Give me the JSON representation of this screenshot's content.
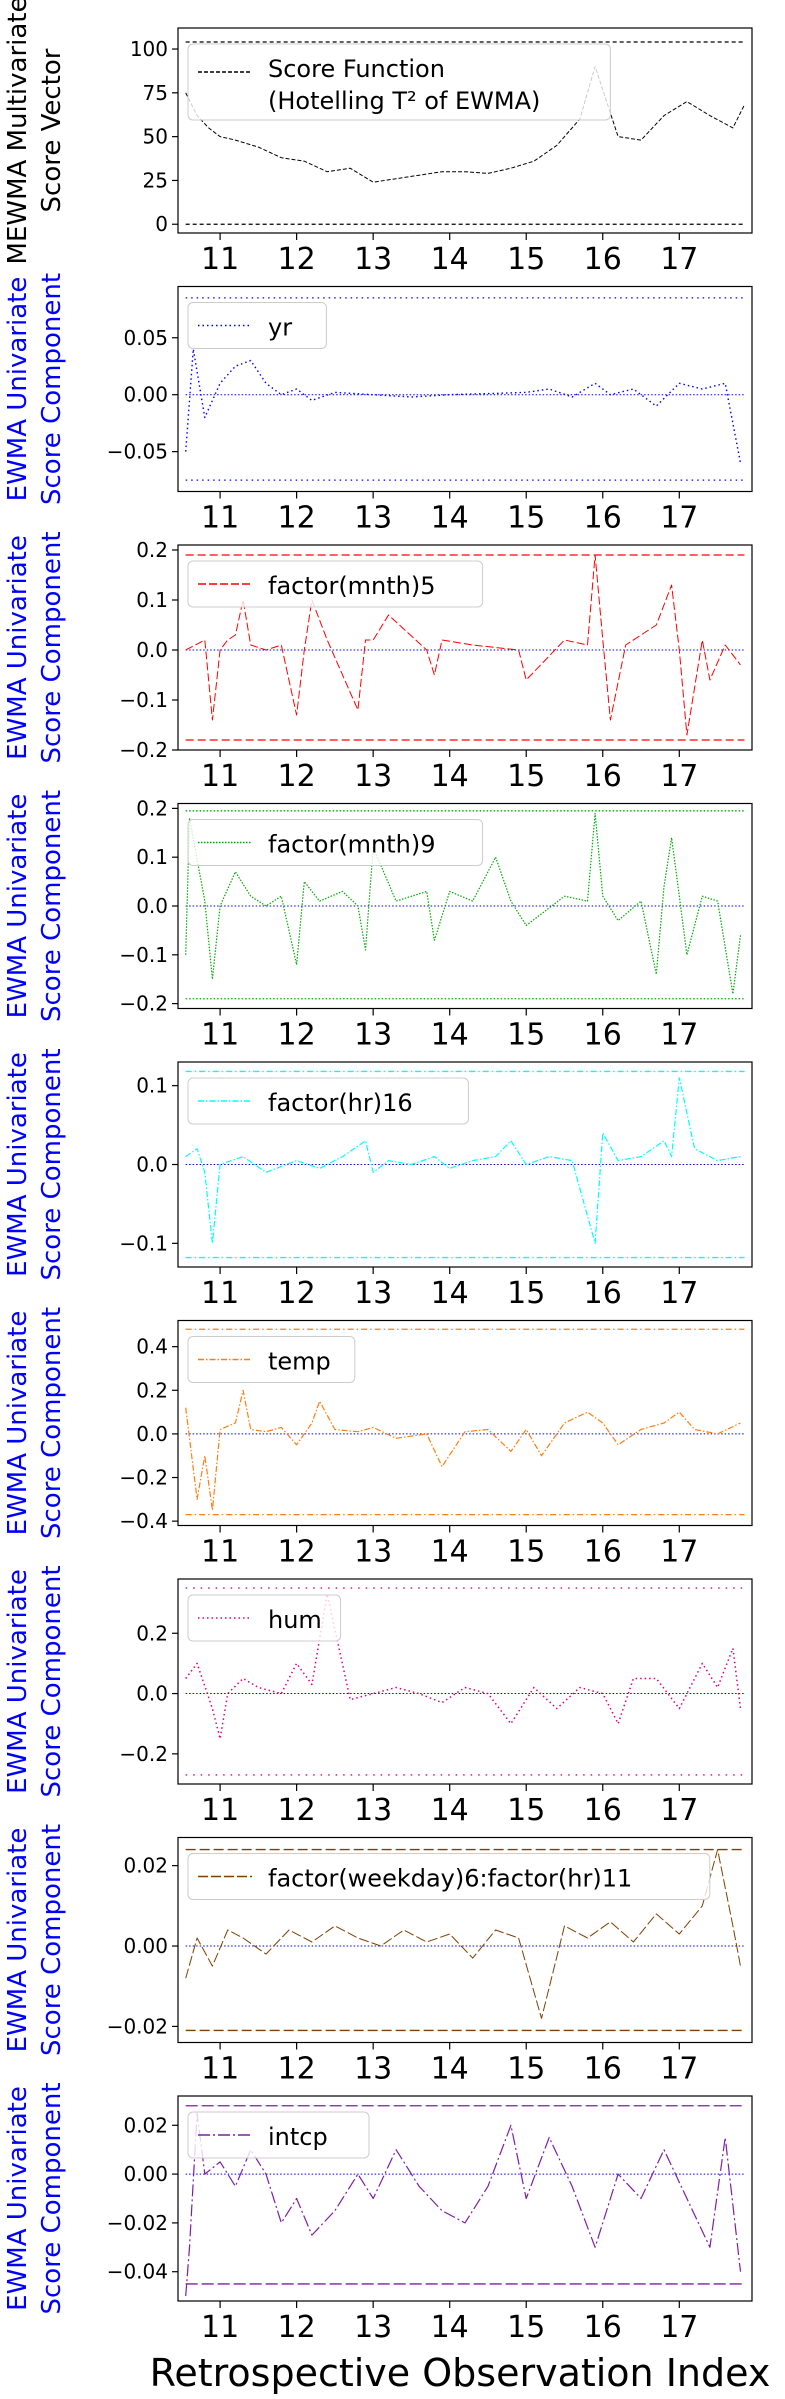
{
  "figure": {
    "xlabel": "Retrospective Observation Index"
  },
  "chart_data": [
    {
      "type": "line",
      "ylabel_lines": [
        "MEWMA Multivariate",
        "Score Vector"
      ],
      "ylabel_color": "#000000",
      "legend": [
        "Score Function",
        "(Hotelling T² of EWMA)"
      ],
      "series": [
        {
          "name": "Score Function (Hotelling T² of EWMA)",
          "color": "#000000",
          "dash": "4,2",
          "width": 1,
          "x": [
            10.55,
            10.7,
            10.85,
            11,
            11.2,
            11.5,
            11.8,
            12.1,
            12.4,
            12.7,
            13,
            13.3,
            13.6,
            13.9,
            14.2,
            14.5,
            14.8,
            15.1,
            15.4,
            15.7,
            15.9,
            16.2,
            16.5,
            16.8,
            17.1,
            17.4,
            17.7,
            17.85
          ],
          "y": [
            75,
            62,
            55,
            50,
            48,
            44,
            38,
            36,
            30,
            32,
            24,
            26,
            28,
            30,
            30,
            29,
            32,
            36,
            45,
            60,
            90,
            50,
            48,
            62,
            70,
            62,
            55,
            68
          ]
        }
      ],
      "limits": [
        {
          "y": 104,
          "color": "#000000",
          "dash": "4,3"
        },
        {
          "y": 0,
          "color": "#000000",
          "dash": "4,3"
        }
      ],
      "center": null,
      "ylim": [
        -5,
        112
      ],
      "yticks": [
        0,
        25,
        50,
        75,
        100
      ],
      "ytick_labels": [
        "0",
        "25",
        "50",
        "75",
        "100"
      ]
    },
    {
      "type": "line",
      "ylabel_lines": [
        "EWMA Univariate",
        "Score Component"
      ],
      "ylabel_color": "#0000ff",
      "legend": [
        "yr"
      ],
      "series": [
        {
          "name": "yr",
          "color": "#0000ff",
          "dash": "1.5,3",
          "width": 1.4,
          "x": [
            10.55,
            10.65,
            10.8,
            11,
            11.2,
            11.4,
            11.6,
            11.8,
            12,
            12.2,
            12.5,
            13,
            13.5,
            14,
            14.5,
            15,
            15.3,
            15.6,
            15.9,
            16.1,
            16.4,
            16.7,
            17,
            17.3,
            17.6,
            17.8
          ],
          "y": [
            -0.05,
            0.04,
            -0.02,
            0.01,
            0.025,
            0.03,
            0.01,
            0,
            0.005,
            -0.005,
            0.002,
            0,
            -0.002,
            0,
            0.001,
            0.002,
            0.005,
            -0.002,
            0.01,
            0,
            0.005,
            -0.01,
            0.01,
            0.005,
            0.01,
            -0.06
          ]
        }
      ],
      "limits": [
        {
          "y": 0.085,
          "color": "#0000ff",
          "dash": "1.5,4"
        },
        {
          "y": -0.075,
          "color": "#0000ff",
          "dash": "1.5,4"
        }
      ],
      "center": 0,
      "ylim": [
        -0.085,
        0.095
      ],
      "yticks": [
        -0.05,
        0,
        0.05
      ],
      "ytick_labels": [
        "−0.05",
        "0.00",
        "0.05"
      ]
    },
    {
      "type": "line",
      "ylabel_lines": [
        "EWMA Univariate",
        "Score Component"
      ],
      "ylabel_color": "#0000ff",
      "legend": [
        "factor(mnth)5"
      ],
      "series": [
        {
          "name": "factor(mnth)5",
          "color": "#ff0000",
          "dash": "8,3",
          "width": 1,
          "x": [
            10.55,
            10.8,
            10.9,
            11,
            11.1,
            11.2,
            11.3,
            11.4,
            11.6,
            11.8,
            12,
            12.1,
            12.2,
            12.4,
            12.8,
            12.9,
            13,
            13.2,
            13.7,
            13.8,
            13.9,
            14.3,
            14.9,
            15,
            15.5,
            15.8,
            15.9,
            16,
            16.1,
            16.3,
            16.7,
            16.9,
            17,
            17.1,
            17.3,
            17.4,
            17.6,
            17.8
          ],
          "y": [
            0,
            0.02,
            -0.14,
            0,
            0.02,
            0.03,
            0.1,
            0.01,
            0,
            0.01,
            -0.13,
            0,
            0.1,
            0.02,
            -0.12,
            0.02,
            0.02,
            0.07,
            0,
            -0.05,
            0.02,
            0.01,
            0,
            -0.06,
            0.02,
            0.01,
            0.19,
            0.02,
            -0.14,
            0.01,
            0.05,
            0.13,
            0,
            -0.17,
            0.02,
            -0.06,
            0.01,
            -0.03
          ]
        }
      ],
      "limits": [
        {
          "y": 0.19,
          "color": "#ff0000",
          "dash": "8,4"
        },
        {
          "y": -0.18,
          "color": "#ff0000",
          "dash": "8,4"
        }
      ],
      "center": 0,
      "ylim": [
        -0.2,
        0.21
      ],
      "yticks": [
        -0.2,
        -0.1,
        0,
        0.1,
        0.2
      ],
      "ytick_labels": [
        "−0.2",
        "−0.1",
        "0.0",
        "0.1",
        "0.2"
      ]
    },
    {
      "type": "line",
      "ylabel_lines": [
        "EWMA Univariate",
        "Score Component"
      ],
      "ylabel_color": "#0000ff",
      "legend": [
        "factor(mnth)9"
      ],
      "series": [
        {
          "name": "factor(mnth)9",
          "color": "#00aa00",
          "dash": "1.5,1.5",
          "width": 1.2,
          "x": [
            10.55,
            10.6,
            10.8,
            10.9,
            11,
            11.2,
            11.4,
            11.6,
            11.8,
            12,
            12.1,
            12.3,
            12.6,
            12.8,
            12.9,
            13,
            13.3,
            13.7,
            13.8,
            14,
            14.3,
            14.6,
            14.8,
            15,
            15.5,
            15.8,
            15.9,
            16,
            16.2,
            16.5,
            16.7,
            16.8,
            16.9,
            17,
            17.1,
            17.3,
            17.5,
            17.7,
            17.8
          ],
          "y": [
            -0.1,
            0.18,
            0.01,
            -0.15,
            0,
            0.07,
            0.02,
            0,
            0.02,
            -0.12,
            0.05,
            0.01,
            0.03,
            0,
            -0.09,
            0.12,
            0.01,
            0.03,
            -0.07,
            0.03,
            0.01,
            0.1,
            0.01,
            -0.04,
            0.02,
            0.01,
            0.19,
            0.02,
            -0.03,
            0.01,
            -0.14,
            0.04,
            0.14,
            0.02,
            -0.1,
            0.02,
            0.01,
            -0.18,
            -0.06
          ]
        }
      ],
      "limits": [
        {
          "y": 0.195,
          "color": "#00aa00",
          "dash": "1.5,2"
        },
        {
          "y": -0.19,
          "color": "#00aa00",
          "dash": "1.5,2"
        }
      ],
      "center": 0,
      "ylim": [
        -0.21,
        0.21
      ],
      "yticks": [
        -0.2,
        -0.1,
        0,
        0.1,
        0.2
      ],
      "ytick_labels": [
        "−0.2",
        "−0.1",
        "0.0",
        "0.1",
        "0.2"
      ]
    },
    {
      "type": "line",
      "ylabel_lines": [
        "EWMA Univariate",
        "Score Component"
      ],
      "ylabel_color": "#0000ff",
      "legend": [
        "factor(hr)16"
      ],
      "series": [
        {
          "name": "factor(hr)16",
          "color": "#00ffff",
          "dash": "6,2,1.5,2",
          "width": 1.2,
          "x": [
            10.55,
            10.7,
            10.8,
            10.9,
            11,
            11.3,
            11.6,
            12,
            12.3,
            12.6,
            12.9,
            13,
            13.2,
            13.5,
            13.8,
            14,
            14.3,
            14.6,
            14.8,
            15,
            15.3,
            15.6,
            15.9,
            16,
            16.2,
            16.5,
            16.8,
            16.9,
            17,
            17.2,
            17.5,
            17.8
          ],
          "y": [
            0.01,
            0.02,
            -0.01,
            -0.1,
            0,
            0.01,
            -0.01,
            0.005,
            -0.005,
            0.01,
            0.03,
            -0.01,
            0.005,
            0,
            0.01,
            -0.005,
            0.005,
            0.01,
            0.03,
            0,
            0.01,
            0.005,
            -0.1,
            0.04,
            0.005,
            0.01,
            0.03,
            0.01,
            0.11,
            0.02,
            0.005,
            0.01
          ]
        }
      ],
      "limits": [
        {
          "y": 0.118,
          "color": "#00ffff",
          "dash": "6,3,1.5,3"
        },
        {
          "y": -0.118,
          "color": "#00ffff",
          "dash": "6,3,1.5,3"
        }
      ],
      "center": 0,
      "ylim": [
        -0.13,
        0.13
      ],
      "yticks": [
        -0.1,
        0,
        0.1
      ],
      "ytick_labels": [
        "−0.1",
        "0.0",
        "0.1"
      ]
    },
    {
      "type": "line",
      "ylabel_lines": [
        "EWMA Univariate",
        "Score Component"
      ],
      "ylabel_color": "#0000ff",
      "legend": [
        "temp"
      ],
      "series": [
        {
          "name": "temp",
          "color": "#ff7f0e",
          "dash": "6,2,1.5,2",
          "width": 1.2,
          "x": [
            10.55,
            10.7,
            10.8,
            10.9,
            11,
            11.2,
            11.3,
            11.4,
            11.6,
            11.8,
            12,
            12.2,
            12.3,
            12.5,
            12.8,
            13,
            13.3,
            13.7,
            13.9,
            14.2,
            14.5,
            14.8,
            15,
            15.2,
            15.5,
            15.8,
            16,
            16.2,
            16.5,
            16.8,
            17,
            17.2,
            17.5,
            17.8
          ],
          "y": [
            0.12,
            -0.3,
            -0.1,
            -0.35,
            0.02,
            0.05,
            0.2,
            0.02,
            0.01,
            0.03,
            -0.05,
            0.05,
            0.15,
            0.02,
            0.01,
            0.03,
            -0.02,
            0,
            -0.15,
            0.01,
            0.02,
            -0.08,
            0.02,
            -0.1,
            0.05,
            0.1,
            0.05,
            -0.05,
            0.02,
            0.05,
            0.1,
            0.02,
            0,
            0.05
          ]
        }
      ],
      "limits": [
        {
          "y": 0.48,
          "color": "#ff7f0e",
          "dash": "6,3,1.5,3"
        },
        {
          "y": -0.37,
          "color": "#ff7f0e",
          "dash": "6,3,1.5,3"
        }
      ],
      "center": 0,
      "ylim": [
        -0.42,
        0.52
      ],
      "yticks": [
        -0.4,
        -0.2,
        0,
        0.2,
        0.4
      ],
      "ytick_labels": [
        "−0.4",
        "−0.2",
        "0.0",
        "0.2",
        "0.4"
      ]
    },
    {
      "type": "line",
      "ylabel_lines": [
        "EWMA Univariate",
        "Score Component"
      ],
      "ylabel_color": "#0000ff",
      "legend": [
        "hum"
      ],
      "series": [
        {
          "name": "hum",
          "color": "#e0007f",
          "dash": "1.5,3",
          "width": 1.5,
          "x": [
            10.55,
            10.7,
            10.9,
            11,
            11.1,
            11.3,
            11.5,
            11.8,
            12,
            12.2,
            12.4,
            12.7,
            13,
            13.3,
            13.6,
            13.9,
            14.2,
            14.5,
            14.8,
            15.1,
            15.4,
            15.7,
            16,
            16.2,
            16.4,
            16.7,
            17,
            17.3,
            17.5,
            17.7,
            17.8
          ],
          "y": [
            0.05,
            0.1,
            -0.05,
            -0.15,
            0,
            0.05,
            0.02,
            0,
            0.1,
            0.03,
            0.33,
            -0.02,
            0,
            0.02,
            0,
            -0.03,
            0.02,
            0,
            -0.1,
            0.02,
            -0.05,
            0.02,
            0,
            -0.1,
            0.05,
            0.05,
            -0.05,
            0.1,
            0.02,
            0.15,
            -0.05
          ]
        }
      ],
      "limits": [
        {
          "y": 0.35,
          "color": "#e0007f",
          "dash": "1.5,6"
        },
        {
          "y": -0.27,
          "color": "#e0007f",
          "dash": "1.5,6"
        }
      ],
      "center": 0,
      "ylim": [
        -0.3,
        0.38
      ],
      "yticks": [
        -0.2,
        0,
        0.2
      ],
      "ytick_labels": [
        "−0.2",
        "0.0",
        "0.2"
      ]
    },
    {
      "type": "line",
      "ylabel_lines": [
        "EWMA Univariate",
        "Score Component"
      ],
      "ylabel_color": "#0000ff",
      "legend": [
        "factor(weekday)6:factor(hr)11"
      ],
      "series": [
        {
          "name": "factor(weekday)6:factor(hr)11",
          "color": "#7f3f00",
          "dash": "10,3",
          "width": 1,
          "x": [
            10.55,
            10.7,
            10.9,
            11.1,
            11.3,
            11.6,
            11.9,
            12.2,
            12.5,
            12.8,
            13.1,
            13.4,
            13.7,
            14,
            14.3,
            14.6,
            14.9,
            15.2,
            15.5,
            15.8,
            16.1,
            16.4,
            16.7,
            17,
            17.3,
            17.5,
            17.7,
            17.8
          ],
          "y": [
            -0.008,
            0.002,
            -0.005,
            0.004,
            0.002,
            -0.002,
            0.004,
            0.001,
            0.005,
            0.002,
            0,
            0.004,
            0.001,
            0.003,
            -0.003,
            0.004,
            0.002,
            -0.018,
            0.005,
            0.002,
            0.006,
            0.001,
            0.008,
            0.003,
            0.01,
            0.024,
            0.005,
            -0.005
          ]
        }
      ],
      "limits": [
        {
          "y": 0.024,
          "color": "#7f3f00",
          "dash": "10,4"
        },
        {
          "y": -0.021,
          "color": "#7f3f00",
          "dash": "10,4"
        }
      ],
      "center": 0,
      "ylim": [
        -0.024,
        0.027
      ],
      "yticks": [
        -0.02,
        0,
        0.02
      ],
      "ytick_labels": [
        "−0.02",
        "0.00",
        "0.02"
      ]
    },
    {
      "type": "line",
      "ylabel_lines": [
        "EWMA Univariate",
        "Score Component"
      ],
      "ylabel_color": "#0000ff",
      "legend": [
        "intcp"
      ],
      "series": [
        {
          "name": "intcp",
          "color": "#7f1fa0",
          "dash": "12,3,2,3",
          "width": 1.2,
          "x": [
            10.55,
            10.6,
            10.7,
            10.8,
            11,
            11.2,
            11.4,
            11.6,
            11.8,
            12,
            12.2,
            12.5,
            12.8,
            13,
            13.3,
            13.6,
            13.9,
            14.2,
            14.5,
            14.8,
            15,
            15.3,
            15.6,
            15.9,
            16.2,
            16.5,
            16.8,
            17.1,
            17.4,
            17.6,
            17.8
          ],
          "y": [
            -0.05,
            -0.03,
            0.025,
            0,
            0.005,
            -0.005,
            0.01,
            0,
            -0.02,
            -0.01,
            -0.025,
            -0.015,
            0,
            -0.01,
            0.01,
            -0.005,
            -0.015,
            -0.02,
            -0.005,
            0.02,
            -0.01,
            0.015,
            -0.005,
            -0.03,
            0,
            -0.01,
            0.01,
            -0.01,
            -0.03,
            0.015,
            -0.04
          ]
        }
      ],
      "limits": [
        {
          "y": 0.028,
          "color": "#7f1fa0",
          "dash": "12,4"
        },
        {
          "y": -0.045,
          "color": "#7f1fa0",
          "dash": "12,4"
        }
      ],
      "center": 0,
      "ylim": [
        -0.052,
        0.032
      ],
      "yticks": [
        -0.04,
        -0.02,
        0,
        0.02
      ],
      "ytick_labels": [
        "−0.04",
        "−0.02",
        "0.00",
        "0.02"
      ]
    }
  ],
  "shared_x": {
    "xlim": [
      10.45,
      17.95
    ],
    "ticks": [
      11,
      12,
      13,
      14,
      15,
      16,
      17
    ],
    "tick_labels": [
      "11",
      "12",
      "13",
      "14",
      "15",
      "16",
      "17"
    ]
  }
}
